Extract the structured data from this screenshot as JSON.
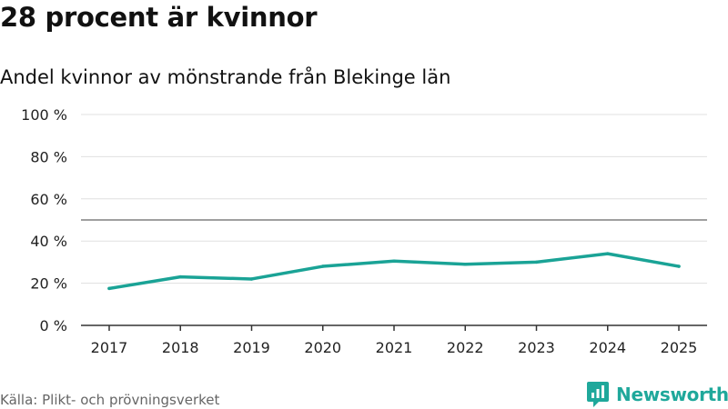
{
  "header": {
    "title": "28 procent är kvinnor",
    "subtitle": "Andel kvinnor av mönstrande från Blekinge län"
  },
  "footer": {
    "source": "Källa: Plikt- och prövningsverket",
    "brand": "Newsworthy",
    "brand_icon": "newsworthy-logo-icon"
  },
  "colors": {
    "line": "#1aa396",
    "reference": "#666666",
    "grid": "#e0e0e0",
    "axis": "#333333",
    "brand": "#1fa89b"
  },
  "chart_data": {
    "type": "line",
    "title": "28 procent är kvinnor",
    "subtitle": "Andel kvinnor av mönstrande från Blekinge län",
    "xlabel": "",
    "ylabel": "",
    "ylim": [
      0,
      100
    ],
    "yticks": [
      0,
      20,
      40,
      60,
      80,
      100
    ],
    "ytick_labels": [
      "0 %",
      "20 %",
      "40 %",
      "60 %",
      "80 %",
      "100 %"
    ],
    "categories": [
      "2017",
      "2018",
      "2019",
      "2020",
      "2021",
      "2022",
      "2023",
      "2024",
      "2025"
    ],
    "series": [
      {
        "values": [
          17.5,
          23,
          22,
          28,
          30.5,
          29,
          30,
          34,
          28
        ]
      }
    ],
    "reference_line": 50,
    "grid": true,
    "legend": "none"
  }
}
